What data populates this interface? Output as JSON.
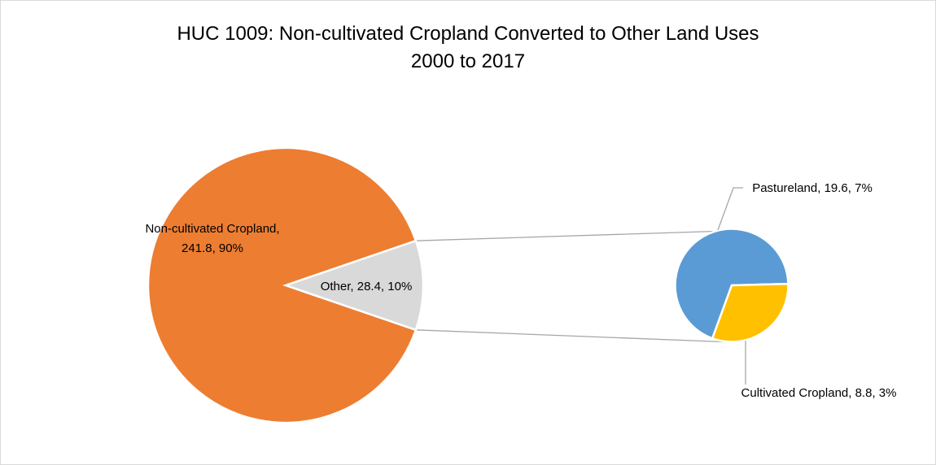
{
  "chart_data": {
    "type": "pie",
    "subtype": "pie-of-pie",
    "title": "HUC 1009: Non-cultivated Cropland Converted to Other Land Uses",
    "subtitle": "2000 to 2017",
    "main_pie": {
      "slices": [
        {
          "name": "Non-cultivated Cropland",
          "value": 241.8,
          "percent": "90%",
          "color": "#ED7D31",
          "label_line1": "Non-cultivated Cropland,",
          "label_line2": "241.8, 90%"
        },
        {
          "name": "Other",
          "value": 28.4,
          "percent": "10%",
          "color": "#D9D9D9",
          "label_line1": "Other, 28.4, 10%"
        }
      ]
    },
    "secondary_pie": {
      "slices": [
        {
          "name": "Pastureland",
          "value": 19.6,
          "percent": "7%",
          "color": "#5B9BD5",
          "label_line1": "Pastureland, 19.6, 7%"
        },
        {
          "name": "Cultivated Cropland",
          "value": 8.8,
          "percent": "3%",
          "color": "#FFC000",
          "label_line1": "Cultivated Cropland, 8.8, 3%"
        }
      ]
    },
    "legend": "none"
  }
}
